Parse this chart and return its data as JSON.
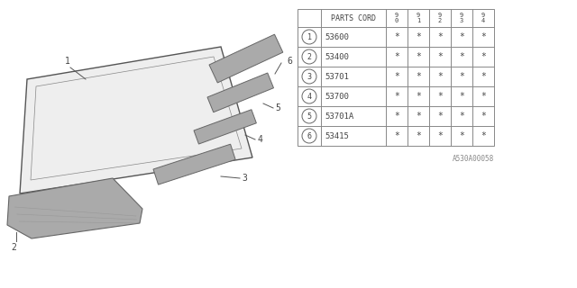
{
  "bg_color": "#ffffff",
  "col_headers": [
    "9\n0",
    "9\n1",
    "9\n2",
    "9\n3",
    "9\n4"
  ],
  "parts": [
    {
      "num": 1,
      "code": "53600"
    },
    {
      "num": 2,
      "code": "53400"
    },
    {
      "num": 3,
      "code": "53701"
    },
    {
      "num": 4,
      "code": "53700"
    },
    {
      "num": 5,
      "code": "53701A"
    },
    {
      "num": 6,
      "code": "53415"
    }
  ],
  "footer_text": "A530A00058",
  "line_color": "#888888",
  "text_color": "#444444",
  "diagram_color": "#aaaaaa",
  "diagram_edge": "#666666"
}
